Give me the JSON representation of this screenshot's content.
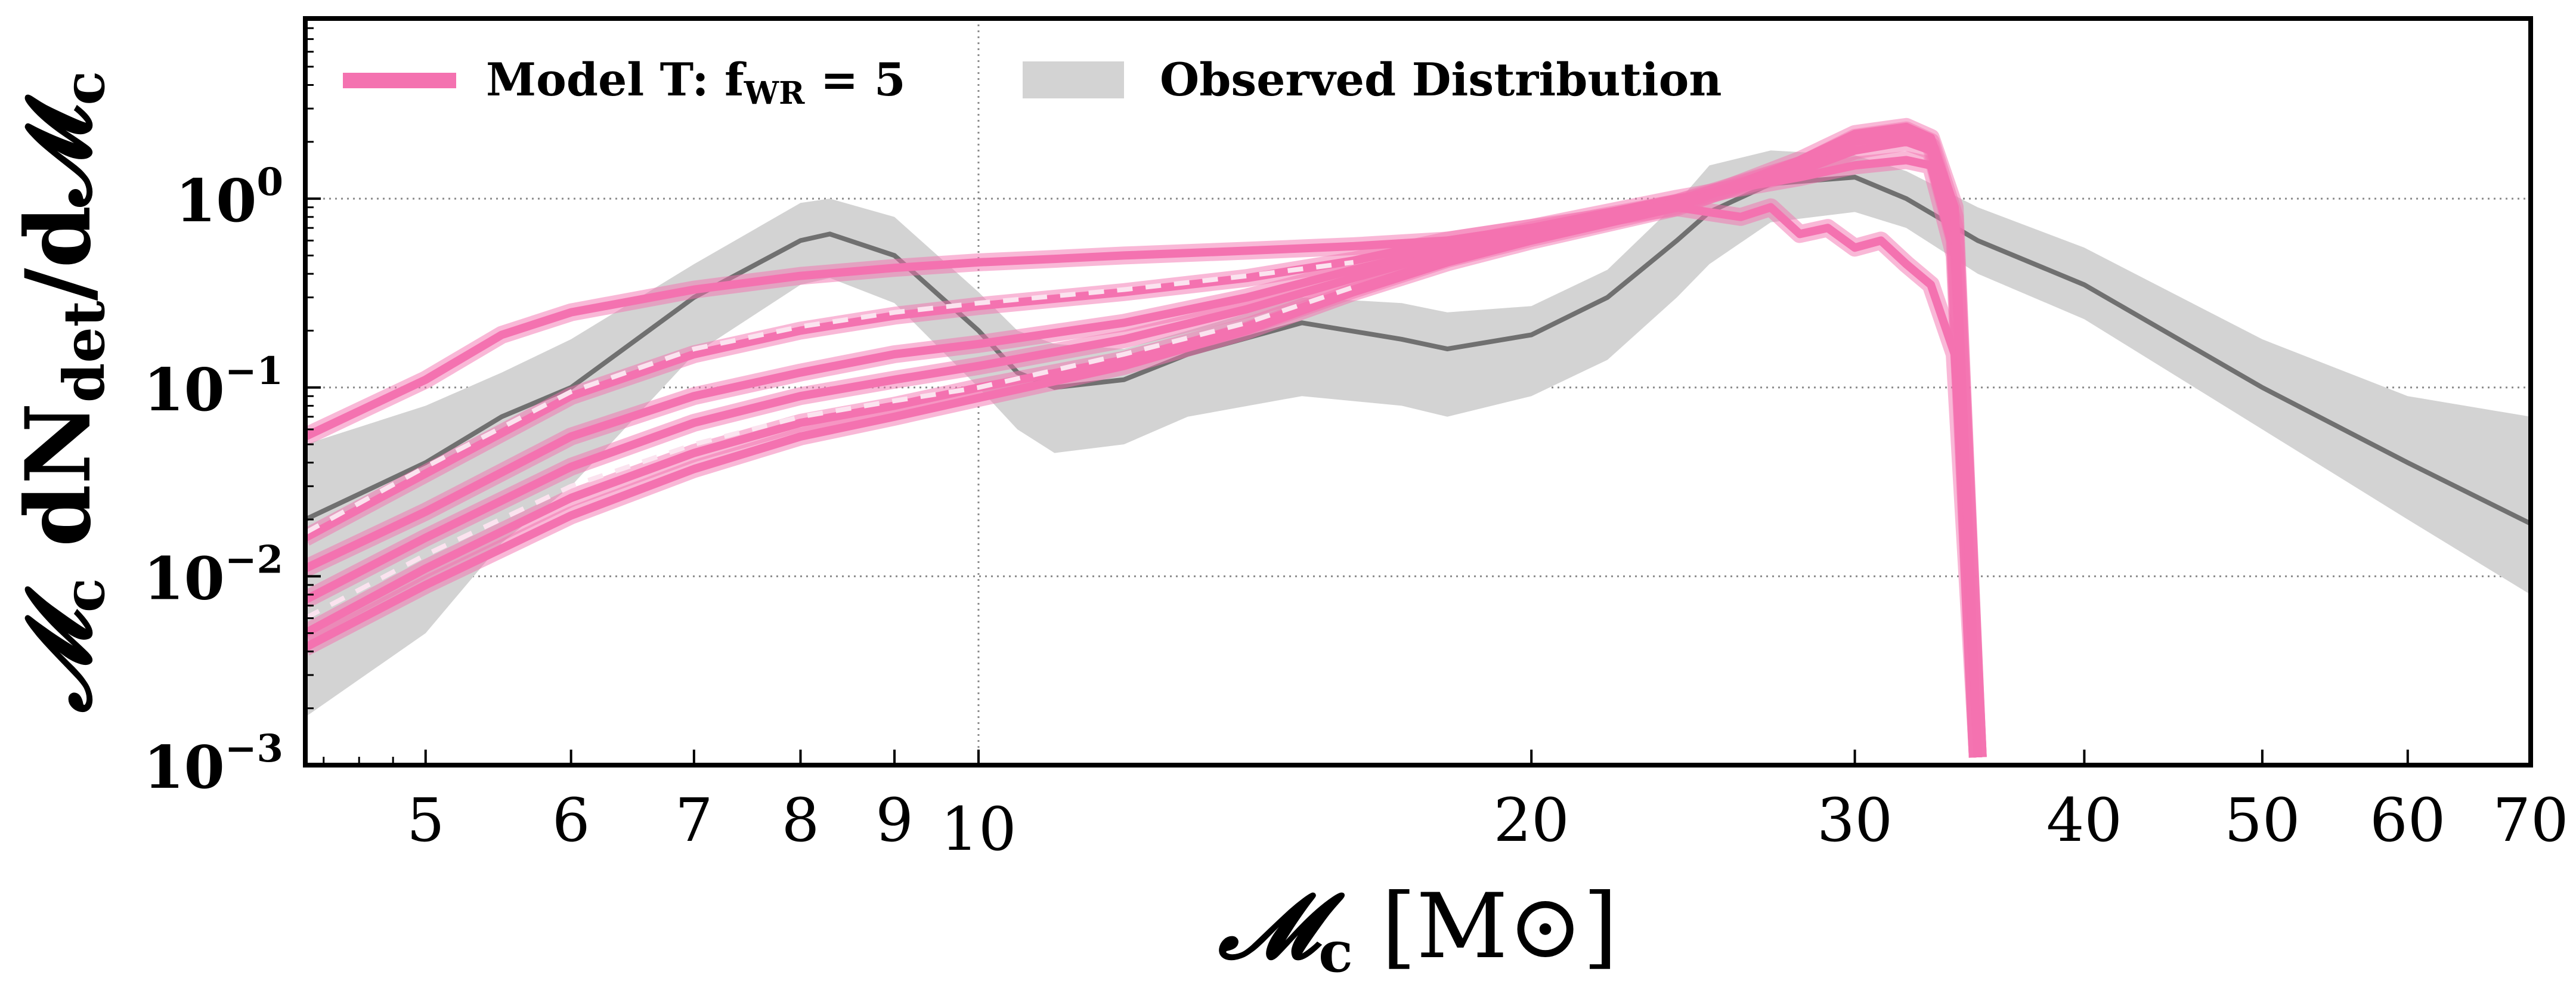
{
  "chart_data": {
    "type": "line",
    "x_scale": "log",
    "y_scale": "log",
    "xlim": [
      4.3,
      70
    ],
    "ylim": [
      0.001,
      9
    ],
    "grid": "dotted gridlines at x=10 and at y=10^-2, 10^-1, 10^0",
    "legend_placement": "top-left",
    "xlabel": {
      "main": "𝓜",
      "sub": "c",
      "rest": " [M⊙]"
    },
    "ylabel": {
      "p1": "𝓜",
      "s1": "c",
      "p2": " dN",
      "s2": "det",
      "p3": "/d𝓜",
      "s3": "c"
    },
    "x_ticks": [
      {
        "value": 5,
        "label": "5"
      },
      {
        "value": 6,
        "label": "6"
      },
      {
        "value": 7,
        "label": "7"
      },
      {
        "value": 8,
        "label": "8"
      },
      {
        "value": 9,
        "label": "9"
      },
      {
        "value": 10,
        "label": "10"
      },
      {
        "value": 20,
        "label": "20"
      },
      {
        "value": 30,
        "label": "30"
      },
      {
        "value": 40,
        "label": "40"
      },
      {
        "value": 50,
        "label": "50"
      },
      {
        "value": 60,
        "label": "60"
      },
      {
        "value": 70,
        "label": "70"
      }
    ],
    "y_ticks": [
      {
        "value": 0.001,
        "base": "10",
        "exp": "−3"
      },
      {
        "value": 0.01,
        "base": "10",
        "exp": "−2"
      },
      {
        "value": 0.1,
        "base": "10",
        "exp": "−1"
      },
      {
        "value": 1,
        "base": "10",
        "exp": "0"
      }
    ],
    "legend": [
      {
        "kind": "line",
        "color": "#f472b0",
        "pre": "Model T: f",
        "sub": "WR",
        "post": " = 5"
      },
      {
        "kind": "band",
        "color": "#d3d3d3",
        "label": "Observed Distribution"
      }
    ],
    "colors": {
      "model": "#f472b0",
      "band": "#d3d3d3",
      "median": "#707070",
      "dashed_highlight": "#fbe3ef"
    },
    "observed": {
      "x": [
        4.3,
        5,
        5.5,
        6,
        7,
        8,
        8.3,
        9,
        10,
        10.5,
        11,
        12,
        13,
        15,
        17,
        18,
        20,
        22,
        24,
        25,
        27,
        30,
        32,
        35,
        40,
        50,
        60,
        70
      ],
      "median": [
        0.02,
        0.04,
        0.07,
        0.1,
        0.3,
        0.6,
        0.65,
        0.5,
        0.2,
        0.12,
        0.1,
        0.11,
        0.15,
        0.22,
        0.18,
        0.16,
        0.19,
        0.3,
        0.6,
        0.85,
        1.2,
        1.3,
        1.0,
        0.6,
        0.35,
        0.1,
        0.04,
        0.019
      ],
      "upper": [
        0.05,
        0.08,
        0.12,
        0.18,
        0.45,
        0.95,
        1.0,
        0.8,
        0.32,
        0.2,
        0.17,
        0.16,
        0.2,
        0.3,
        0.28,
        0.25,
        0.27,
        0.42,
        0.95,
        1.5,
        1.8,
        1.7,
        1.4,
        0.9,
        0.55,
        0.18,
        0.09,
        0.07
      ],
      "lower": [
        0.0018,
        0.005,
        0.015,
        0.03,
        0.15,
        0.35,
        0.38,
        0.28,
        0.1,
        0.06,
        0.045,
        0.05,
        0.07,
        0.09,
        0.08,
        0.07,
        0.09,
        0.14,
        0.3,
        0.45,
        0.75,
        0.85,
        0.7,
        0.4,
        0.23,
        0.06,
        0.02,
        0.008
      ]
    },
    "series": [
      {
        "x": [
          4.3,
          5,
          5.5,
          6,
          7,
          8,
          9,
          10,
          11,
          12,
          14,
          16,
          18,
          20,
          24,
          26,
          27,
          28,
          29,
          30,
          31,
          32,
          33,
          34,
          35
        ],
        "y": [
          0.055,
          0.11,
          0.19,
          0.25,
          0.33,
          0.39,
          0.43,
          0.46,
          0.48,
          0.5,
          0.53,
          0.56,
          0.6,
          0.7,
          0.9,
          0.8,
          0.9,
          0.65,
          0.7,
          0.55,
          0.6,
          0.45,
          0.35,
          0.15,
          0.0011
        ]
      },
      {
        "x": [
          4.3,
          5,
          6,
          7,
          8,
          9,
          10,
          12,
          14,
          16,
          18,
          20,
          24,
          28,
          30,
          32,
          33,
          34,
          35
        ],
        "y": [
          0.016,
          0.035,
          0.09,
          0.15,
          0.2,
          0.24,
          0.27,
          0.32,
          0.38,
          0.47,
          0.6,
          0.7,
          1.0,
          1.3,
          1.5,
          1.6,
          1.5,
          0.5,
          0.0011
        ]
      },
      {
        "x": [
          4.3,
          5,
          6,
          7,
          8,
          9,
          10,
          12,
          14,
          16,
          18,
          20,
          24,
          28,
          30,
          32,
          33,
          34,
          35
        ],
        "y": [
          0.011,
          0.022,
          0.055,
          0.09,
          0.12,
          0.15,
          0.17,
          0.22,
          0.3,
          0.42,
          0.55,
          0.68,
          0.95,
          1.4,
          1.8,
          2.0,
          1.8,
          0.6,
          0.0011
        ]
      },
      {
        "x": [
          4.3,
          5,
          6,
          7,
          8,
          9,
          10,
          12,
          14,
          16,
          18,
          20,
          24,
          28,
          30,
          32,
          33,
          34,
          35
        ],
        "y": [
          0.0075,
          0.016,
          0.038,
          0.065,
          0.09,
          0.11,
          0.13,
          0.18,
          0.26,
          0.38,
          0.52,
          0.65,
          0.95,
          1.5,
          2.0,
          2.2,
          1.9,
          0.7,
          0.0011
        ]
      },
      {
        "x": [
          4.3,
          5,
          6,
          7,
          8,
          9,
          10,
          12,
          14,
          16,
          18,
          20,
          24,
          28,
          30,
          32,
          33,
          34,
          35
        ],
        "y": [
          0.005,
          0.011,
          0.026,
          0.045,
          0.065,
          0.08,
          0.1,
          0.14,
          0.21,
          0.33,
          0.48,
          0.62,
          0.92,
          1.5,
          2.1,
          2.3,
          2.0,
          0.8,
          0.0011
        ]
      },
      {
        "x": [
          4.3,
          5,
          6,
          7,
          8,
          9,
          10,
          12,
          14,
          16,
          18,
          20,
          24,
          28,
          30,
          32,
          33,
          34,
          35
        ],
        "y": [
          0.0042,
          0.009,
          0.021,
          0.037,
          0.055,
          0.07,
          0.088,
          0.13,
          0.2,
          0.32,
          0.46,
          0.6,
          0.9,
          1.6,
          2.2,
          2.4,
          2.1,
          0.9,
          0.0011
        ]
      }
    ],
    "dashed_series": [
      {
        "x": [
          4.3,
          5,
          6,
          7,
          8,
          9,
          10,
          12,
          14,
          16
        ],
        "y": [
          0.017,
          0.038,
          0.095,
          0.16,
          0.21,
          0.25,
          0.28,
          0.33,
          0.39,
          0.46
        ]
      },
      {
        "x": [
          4.3,
          5,
          6,
          7,
          8,
          9,
          10,
          12,
          14,
          16
        ],
        "y": [
          0.006,
          0.013,
          0.03,
          0.05,
          0.07,
          0.085,
          0.1,
          0.15,
          0.22,
          0.34
        ]
      }
    ]
  }
}
